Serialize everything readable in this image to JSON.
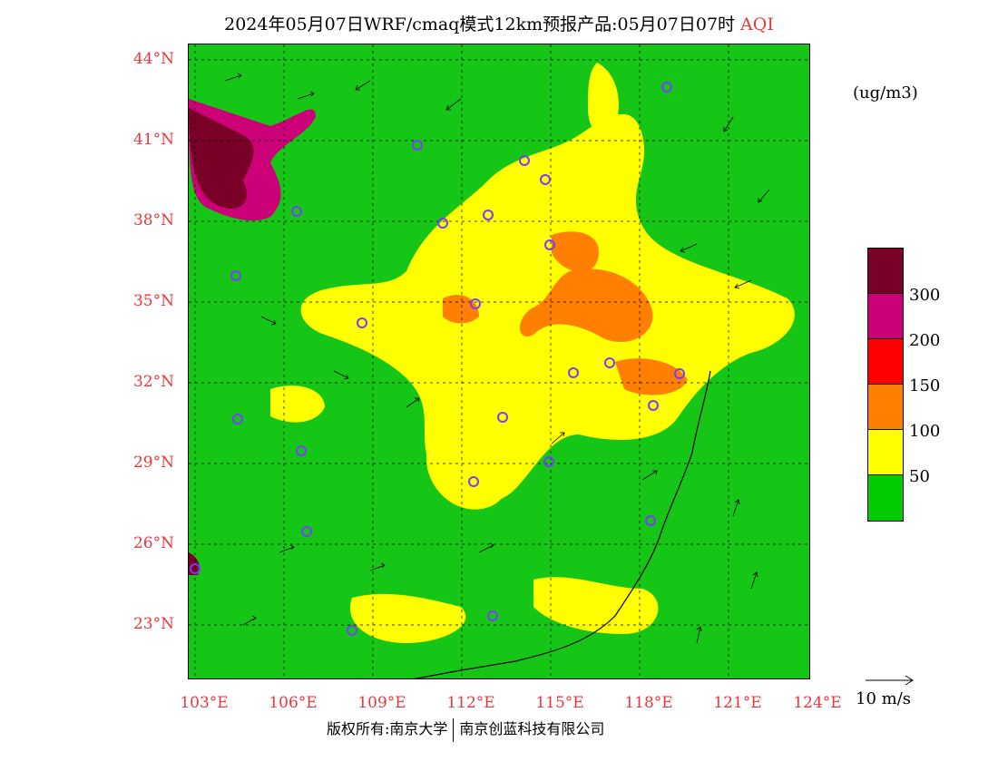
{
  "title": {
    "main": "2024年05月07日WRF/cmaq模式12km预报产品:05月07日07时",
    "variable": "AQI"
  },
  "latitudes": [
    "44°N",
    "41°N",
    "38°N",
    "35°N",
    "32°N",
    "29°N",
    "26°N",
    "23°N"
  ],
  "longitudes": [
    "103°E",
    "106°E",
    "109°E",
    "112°E",
    "115°E",
    "118°E",
    "121°E",
    "124°E"
  ],
  "legend": {
    "unit": "(ug/m3)",
    "labels": [
      "300",
      "200",
      "150",
      "100",
      "50"
    ],
    "swatches": [
      "#7a0027",
      "#cc0077",
      "#ff0000",
      "#ff8000",
      "#ffff00",
      "#00cc00"
    ]
  },
  "wind_reference": {
    "label": "10 m/s"
  },
  "footer": {
    "copyright": "版权所有:南京大学",
    "company": "南京创蓝科技有限公司"
  },
  "colors": {
    "green": "#16c616",
    "yellow": "#ffff00",
    "orange": "#ff8000",
    "red": "#ff0000",
    "magenta": "#cc0077",
    "maroon": "#7a0027",
    "label_red": "#e8383c",
    "city_marker": "#7b3cff"
  }
}
